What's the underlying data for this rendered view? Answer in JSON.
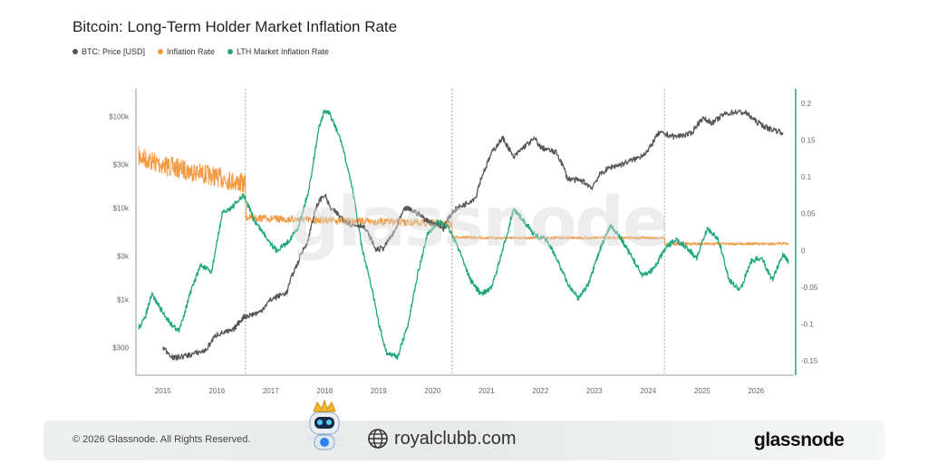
{
  "chart_data": {
    "type": "line",
    "title": "Bitcoin: Long-Term Holder Market Inflation Rate",
    "legend_placement": "top-left",
    "grid": false,
    "x_ticks": [
      "2015",
      "2016",
      "2017",
      "2018",
      "2019",
      "2020",
      "2021",
      "2022",
      "2023",
      "2024",
      "2025",
      "2026"
    ],
    "x_range": [
      2014.5,
      2026.7
    ],
    "y_left": {
      "scale": "log",
      "tick_labels": [
        "$100k",
        "$30k",
        "$10k",
        "$3k",
        "$1k",
        "$300"
      ],
      "tick_values": [
        100000,
        30000,
        10000,
        3000,
        1000,
        300
      ],
      "range": [
        150,
        200000
      ]
    },
    "y_right": {
      "scale": "linear",
      "tick_labels": [
        "0.2",
        "0.15",
        "0.1",
        "0.05",
        "0",
        "-0.05",
        "-0.1",
        "-0.15"
      ],
      "tick_values": [
        0.2,
        0.15,
        0.1,
        0.05,
        0,
        -0.05,
        -0.1,
        -0.15
      ],
      "range": [
        -0.17,
        0.22
      ]
    },
    "vertical_markers": [
      2016.53,
      2020.36,
      2024.3
    ],
    "series": [
      {
        "name": "BTC: Price [USD]",
        "axis": "left",
        "color": "#555555",
        "x": [
          2015.0,
          2015.2,
          2015.5,
          2015.8,
          2016.0,
          2016.3,
          2016.5,
          2016.8,
          2017.0,
          2017.3,
          2017.5,
          2017.7,
          2017.9,
          2018.0,
          2018.1,
          2018.3,
          2018.5,
          2018.7,
          2018.95,
          2019.1,
          2019.3,
          2019.5,
          2019.7,
          2019.9,
          2020.2,
          2020.4,
          2020.6,
          2020.8,
          2021.0,
          2021.1,
          2021.3,
          2021.5,
          2021.7,
          2021.9,
          2022.0,
          2022.3,
          2022.5,
          2022.8,
          2022.95,
          2023.1,
          2023.3,
          2023.5,
          2023.8,
          2024.0,
          2024.2,
          2024.5,
          2024.8,
          2025.0,
          2025.2,
          2025.4,
          2025.6,
          2025.8,
          2026.0,
          2026.2,
          2026.5
        ],
        "values": [
          300,
          230,
          250,
          280,
          420,
          460,
          650,
          730,
          1000,
          1200,
          2500,
          4500,
          12000,
          14000,
          10000,
          8000,
          6500,
          6500,
          3500,
          3700,
          5500,
          10000,
          9000,
          7300,
          6000,
          9500,
          11000,
          13000,
          29000,
          40000,
          58000,
          35000,
          47000,
          57000,
          46000,
          40000,
          21000,
          19500,
          16500,
          23000,
          28000,
          30000,
          35000,
          42000,
          66000,
          60000,
          65000,
          95000,
          85000,
          105000,
          112000,
          110000,
          88000,
          75000,
          67000
        ]
      },
      {
        "name": "Inflation Rate",
        "axis": "right",
        "color": "#f0963c",
        "x": [
          2014.55,
          2015.0,
          2015.5,
          2016.0,
          2016.53,
          2016.54,
          2017.0,
          2018.0,
          2019.0,
          2020.0,
          2020.36,
          2020.37,
          2021.0,
          2022.0,
          2023.0,
          2024.0,
          2024.3,
          2024.31,
          2025.0,
          2026.0,
          2026.6
        ],
        "values": [
          0.128,
          0.116,
          0.108,
          0.1,
          0.09,
          0.045,
          0.043,
          0.041,
          0.039,
          0.037,
          0.035,
          0.018,
          0.017,
          0.017,
          0.017,
          0.017,
          0.017,
          0.009,
          0.009,
          0.009,
          0.009
        ]
      },
      {
        "name": "LTH Market Inflation Rate",
        "axis": "right",
        "color": "#1fa77f",
        "x": [
          2014.55,
          2014.65,
          2014.8,
          2015.0,
          2015.15,
          2015.3,
          2015.5,
          2015.7,
          2015.9,
          2016.1,
          2016.3,
          2016.5,
          2016.7,
          2016.9,
          2017.1,
          2017.3,
          2017.5,
          2017.7,
          2017.9,
          2018.0,
          2018.1,
          2018.3,
          2018.5,
          2018.7,
          2018.9,
          2019.0,
          2019.15,
          2019.35,
          2019.55,
          2019.7,
          2019.9,
          2020.1,
          2020.3,
          2020.5,
          2020.7,
          2020.9,
          2021.1,
          2021.3,
          2021.5,
          2021.7,
          2021.9,
          2022.1,
          2022.3,
          2022.5,
          2022.7,
          2022.9,
          2023.1,
          2023.3,
          2023.5,
          2023.7,
          2023.9,
          2024.1,
          2024.3,
          2024.5,
          2024.7,
          2024.9,
          2025.1,
          2025.3,
          2025.5,
          2025.7,
          2025.9,
          2026.1,
          2026.3,
          2026.5,
          2026.6
        ],
        "values": [
          -0.105,
          -0.095,
          -0.06,
          -0.085,
          -0.1,
          -0.11,
          -0.06,
          -0.02,
          -0.03,
          0.05,
          0.06,
          0.075,
          0.04,
          0.02,
          0.0,
          0.01,
          0.03,
          0.08,
          0.17,
          0.19,
          0.185,
          0.15,
          0.09,
          0.0,
          -0.06,
          -0.1,
          -0.14,
          -0.145,
          -0.1,
          -0.04,
          0.02,
          0.04,
          0.03,
          0.0,
          -0.04,
          -0.06,
          -0.05,
          0.0,
          0.055,
          0.04,
          0.02,
          0.015,
          -0.01,
          -0.045,
          -0.065,
          -0.045,
          0.0,
          0.035,
          0.015,
          -0.01,
          -0.035,
          -0.025,
          0.0,
          0.015,
          0.005,
          -0.01,
          0.03,
          0.015,
          -0.04,
          -0.055,
          -0.015,
          -0.01,
          -0.04,
          -0.005,
          -0.015
        ]
      }
    ]
  },
  "footer": {
    "copyright": "© 2026 Glassnode. All Rights Reserved.",
    "site": "royalclubb.com",
    "brand": "glassnode"
  },
  "watermark": "glassnode",
  "icons": {
    "globe": "globe-icon",
    "mascot": "robot-mascot-icon"
  }
}
